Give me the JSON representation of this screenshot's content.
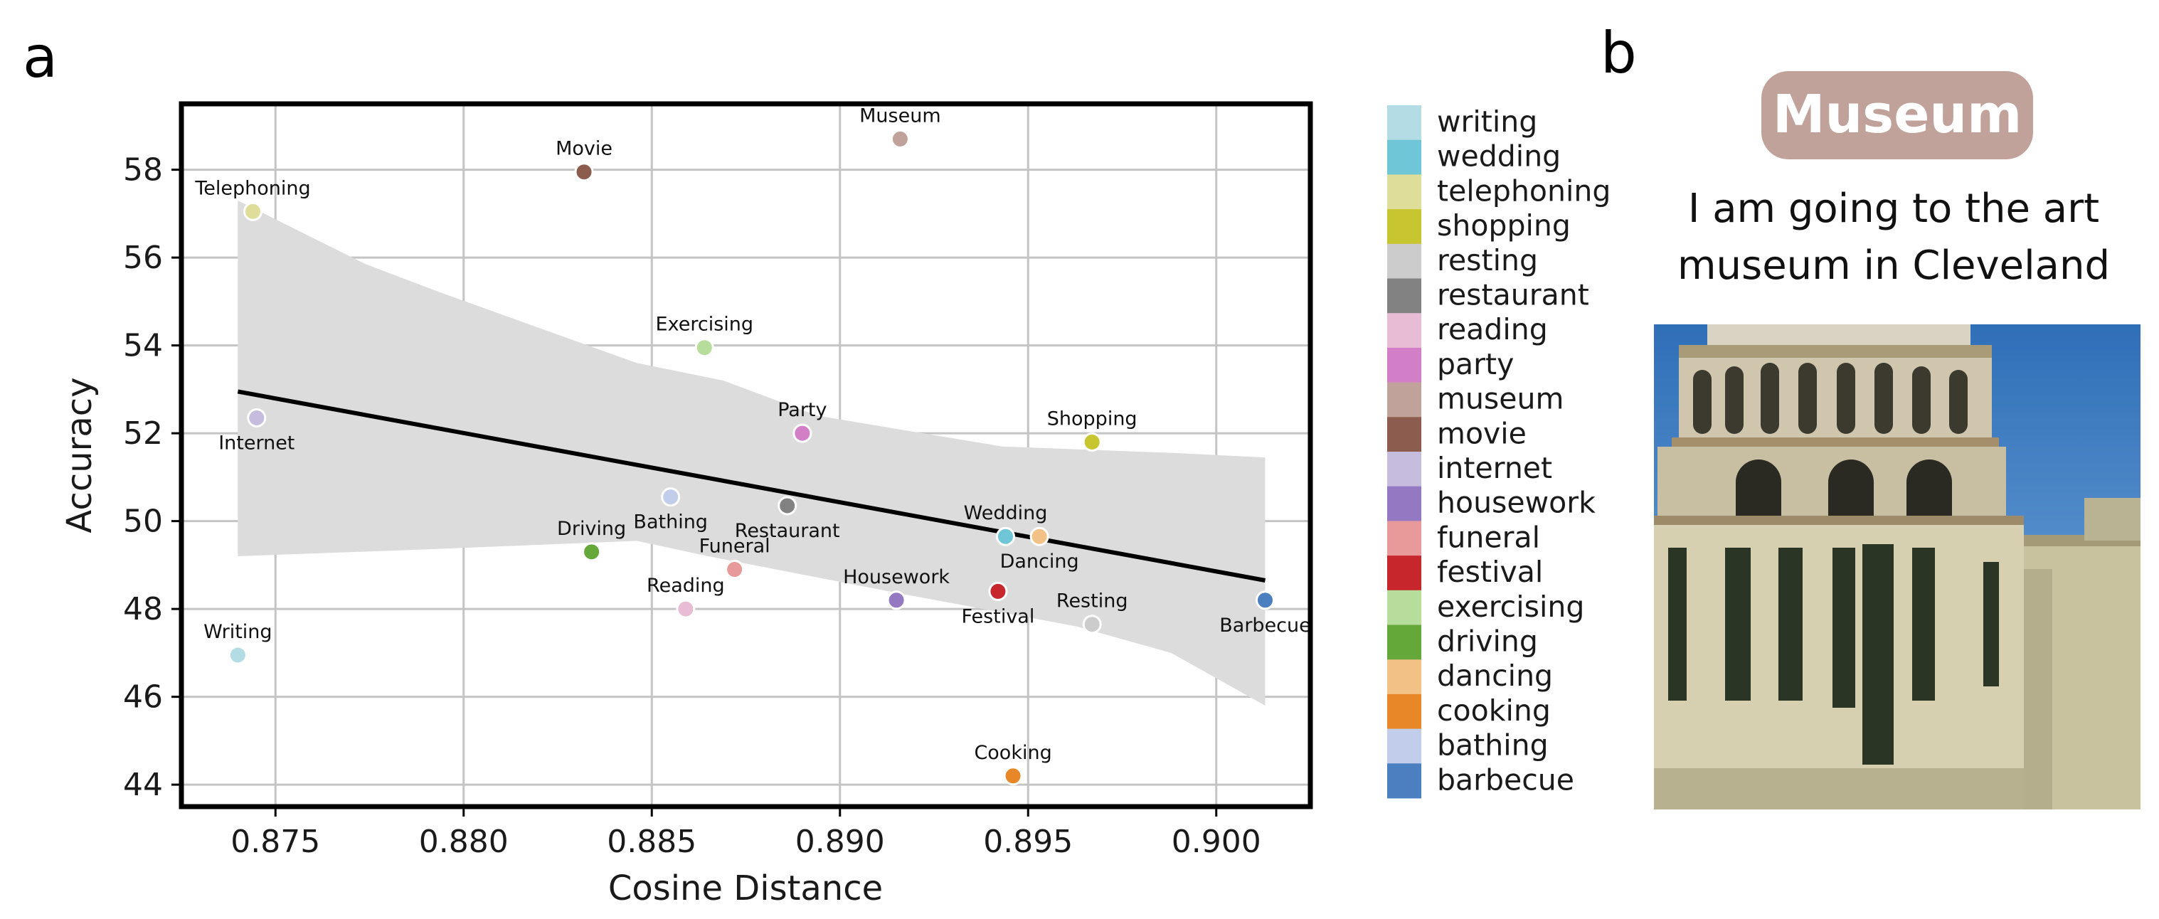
{
  "panels": {
    "a": "a",
    "b": "b"
  },
  "chart_data": {
    "type": "scatter",
    "xlabel": "Cosine Distance",
    "ylabel": "Accuracy",
    "xlim": [
      0.8725,
      0.9025
    ],
    "ylim": [
      43.5,
      59.5
    ],
    "xticks": [
      0.875,
      0.88,
      0.885,
      0.89,
      0.895,
      0.9
    ],
    "xtick_labels": [
      "0.875",
      "0.880",
      "0.885",
      "0.890",
      "0.895",
      "0.900"
    ],
    "yticks": [
      44,
      46,
      48,
      50,
      52,
      54,
      56,
      58
    ],
    "ytick_labels": [
      "44",
      "46",
      "48",
      "50",
      "52",
      "54",
      "56",
      "58"
    ],
    "grid": true,
    "legend_placement": "right, outside",
    "regression": {
      "x": [
        0.874,
        0.9013
      ],
      "y": [
        52.95,
        48.65
      ],
      "color": "#000000",
      "band_color": "#dcdcdc",
      "band_lower": [
        [
          0.874,
          49.2
        ],
        [
          0.8788,
          49.35
        ],
        [
          0.8846,
          49.55
        ],
        [
          0.8865,
          49.2
        ],
        [
          0.8913,
          48.4
        ],
        [
          0.8963,
          47.6
        ],
        [
          0.8988,
          47.0
        ],
        [
          0.9013,
          45.8
        ]
      ],
      "band_upper": [
        [
          0.874,
          57.3
        ],
        [
          0.8774,
          55.85
        ],
        [
          0.8794,
          55.2
        ],
        [
          0.8846,
          53.6
        ],
        [
          0.8869,
          53.2
        ],
        [
          0.8894,
          52.4
        ],
        [
          0.8943,
          51.7
        ],
        [
          0.8989,
          51.55
        ],
        [
          0.9013,
          51.45
        ]
      ]
    },
    "points": [
      {
        "name": "Writing",
        "x": 0.874,
        "y": 46.95,
        "color": "#b4dce4",
        "label_pos": "above"
      },
      {
        "name": "Telephoning",
        "x": 0.8744,
        "y": 57.05,
        "color": "#dede9a",
        "label_pos": "above"
      },
      {
        "name": "Internet",
        "x": 0.8745,
        "y": 52.35,
        "color": "#c6bcdd",
        "label_pos": "below"
      },
      {
        "name": "Movie",
        "x": 0.8832,
        "y": 57.95,
        "color": "#8c5d4e",
        "label_pos": "above"
      },
      {
        "name": "Driving",
        "x": 0.8834,
        "y": 49.3,
        "color": "#63a839",
        "label_pos": "above"
      },
      {
        "name": "Bathing",
        "x": 0.8855,
        "y": 50.55,
        "color": "#c1cdea",
        "label_pos": "below"
      },
      {
        "name": "Reading",
        "x": 0.8859,
        "y": 48.0,
        "color": "#e8bcd5",
        "label_pos": "above"
      },
      {
        "name": "Exercising",
        "x": 0.8864,
        "y": 53.95,
        "color": "#b7dd9c",
        "label_pos": "above"
      },
      {
        "name": "Funeral",
        "x": 0.8872,
        "y": 48.9,
        "color": "#e89a9a",
        "label_pos": "above"
      },
      {
        "name": "Restaurant",
        "x": 0.8886,
        "y": 50.35,
        "color": "#828282",
        "label_pos": "below"
      },
      {
        "name": "Party",
        "x": 0.889,
        "y": 52.0,
        "color": "#d27fc7",
        "label_pos": "above"
      },
      {
        "name": "Housework",
        "x": 0.8915,
        "y": 48.2,
        "color": "#9479c2",
        "label_pos": "above"
      },
      {
        "name": "Museum",
        "x": 0.8916,
        "y": 58.7,
        "color": "#c0a29b",
        "label_pos": "above"
      },
      {
        "name": "Festival",
        "x": 0.8942,
        "y": 48.4,
        "color": "#c7262c",
        "label_pos": "below"
      },
      {
        "name": "Wedding",
        "x": 0.8944,
        "y": 49.65,
        "color": "#6ec6d6",
        "label_pos": "above"
      },
      {
        "name": "Dancing",
        "x": 0.8953,
        "y": 49.65,
        "color": "#f1c186",
        "label_pos": "below"
      },
      {
        "name": "Cooking",
        "x": 0.8946,
        "y": 44.2,
        "color": "#e78727",
        "label_pos": "above"
      },
      {
        "name": "Shopping",
        "x": 0.8967,
        "y": 51.8,
        "color": "#c7c530",
        "label_pos": "above"
      },
      {
        "name": "Resting",
        "x": 0.8967,
        "y": 47.65,
        "color": "#cccccc",
        "label_pos": "above"
      },
      {
        "name": "Barbecue",
        "x": 0.9013,
        "y": 48.2,
        "color": "#4b7fc0",
        "label_pos": "below"
      }
    ],
    "legend": [
      {
        "label": "writing",
        "color": "#b4dce4"
      },
      {
        "label": "wedding",
        "color": "#6ec6d6"
      },
      {
        "label": "telephoning",
        "color": "#dede9a"
      },
      {
        "label": "shopping",
        "color": "#c7c530"
      },
      {
        "label": "resting",
        "color": "#cccccc"
      },
      {
        "label": "restaurant",
        "color": "#828282"
      },
      {
        "label": "reading",
        "color": "#e8bcd5"
      },
      {
        "label": "party",
        "color": "#d27fc7"
      },
      {
        "label": "museum",
        "color": "#c0a29b"
      },
      {
        "label": "movie",
        "color": "#8c5d4e"
      },
      {
        "label": "internet",
        "color": "#c6bcdd"
      },
      {
        "label": "housework",
        "color": "#9479c2"
      },
      {
        "label": "funeral",
        "color": "#e89a9a"
      },
      {
        "label": "festival",
        "color": "#c7262c"
      },
      {
        "label": "exercising",
        "color": "#b7dd9c"
      },
      {
        "label": "driving",
        "color": "#63a839"
      },
      {
        "label": "dancing",
        "color": "#f1c186"
      },
      {
        "label": "cooking",
        "color": "#e78727"
      },
      {
        "label": "bathing",
        "color": "#c1cdea"
      },
      {
        "label": "barbecue",
        "color": "#4b7fc0"
      }
    ]
  },
  "panel_b": {
    "badge_label": "Museum",
    "badge_color": "#c0a29b",
    "caption_lines": [
      "I am going to the art",
      "museum in Cleveland"
    ],
    "photo_subject": "museum-building-photo"
  }
}
